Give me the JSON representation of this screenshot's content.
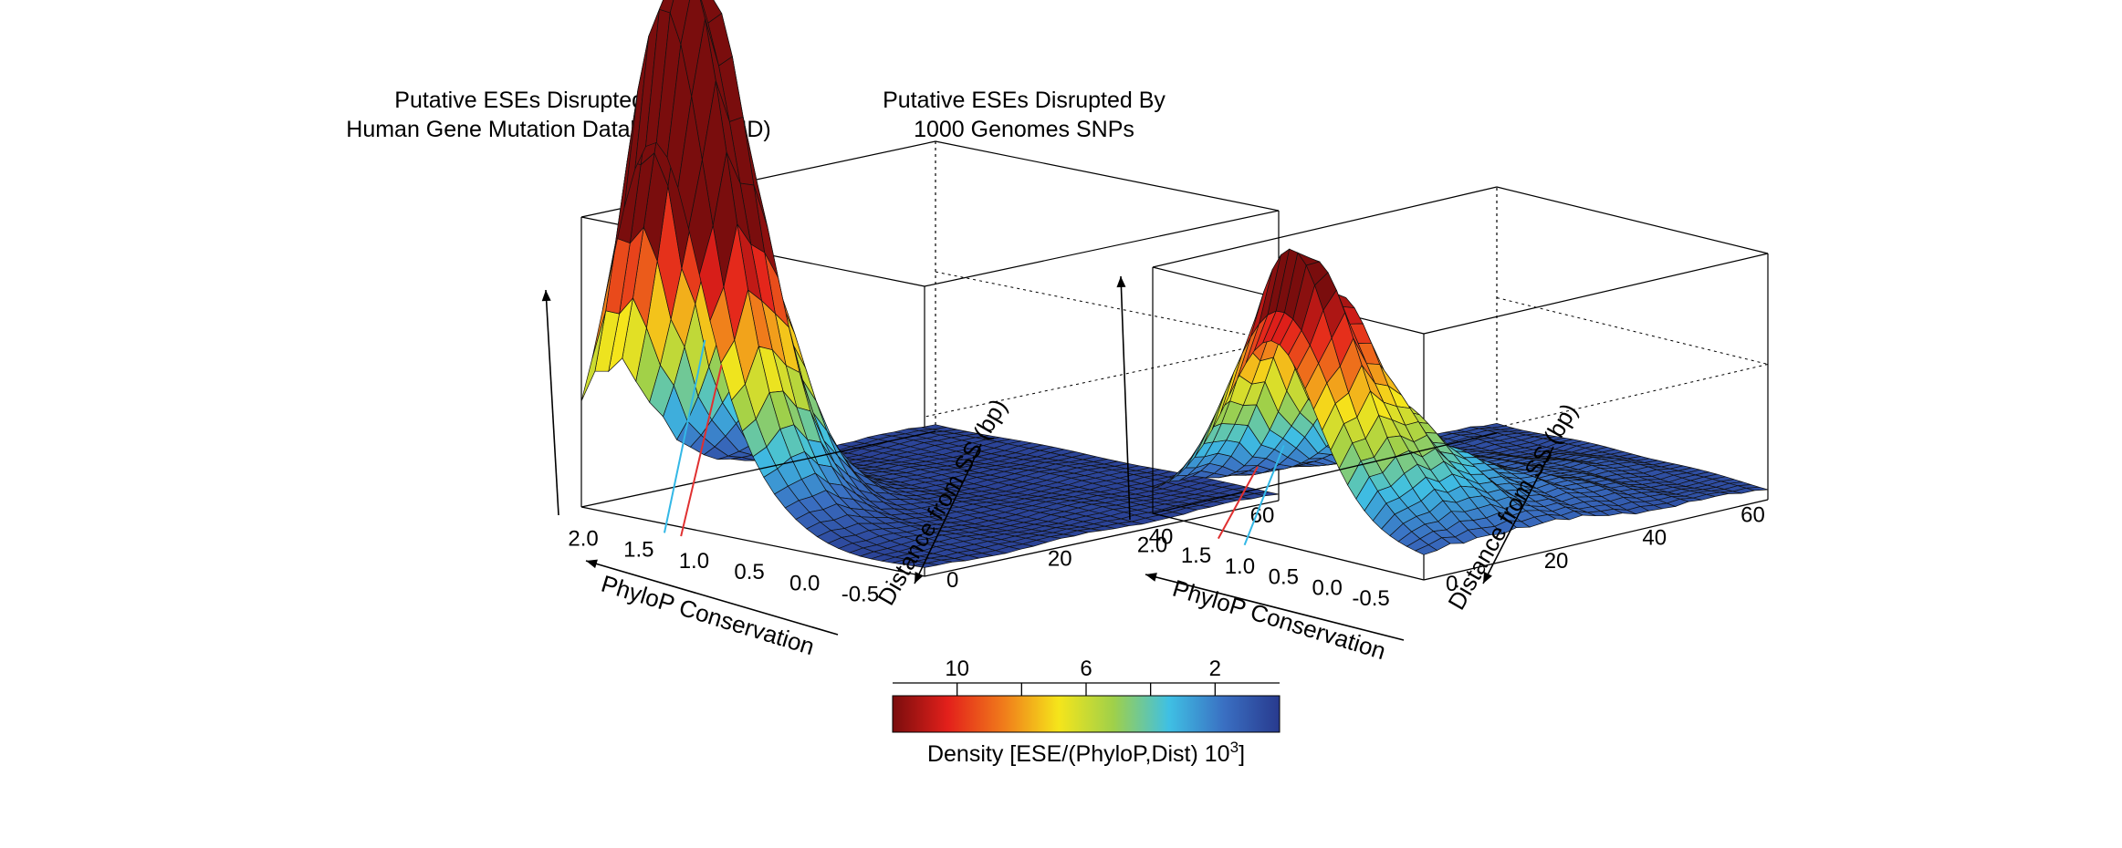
{
  "chart_data": [
    {
      "type": "surface",
      "title_lines": [
        "Putative ESEs Disrupted By The",
        "Human Gene Mutation Database (HGMD)"
      ],
      "xlabel": "PhyloP Conservation",
      "ylabel": "Distance from SS (bp)",
      "x_ticks": [
        "2.0",
        "1.5",
        "1.0",
        "0.5",
        "0.0",
        "-0.5"
      ],
      "y_ticks": [
        "0",
        "20",
        "40",
        "60"
      ],
      "xlim": [
        -1.0,
        2.1
      ],
      "ylim": [
        0,
        70
      ],
      "zlim": [
        0,
        12
      ],
      "markers": [
        {
          "x": 1.35,
          "color": "#33b8e6"
        },
        {
          "x": 1.2,
          "color": "#e03030"
        }
      ],
      "peaks": [
        {
          "x": 1.55,
          "y": 5,
          "height": 11.0,
          "sx": 0.35,
          "sy": 7
        },
        {
          "x": 1.35,
          "y": 10,
          "height": 10.0,
          "sx": 0.4,
          "sy": 10
        },
        {
          "x": 1.05,
          "y": 6,
          "height": 4.0,
          "sx": 0.55,
          "sy": 8
        }
      ],
      "base_density": 0.3
    },
    {
      "type": "surface",
      "title_lines": [
        "Putative ESEs Disrupted By",
        "1000 Genomes SNPs"
      ],
      "xlabel": "PhyloP Conservation",
      "ylabel": "Distance from SS (bp)",
      "x_ticks": [
        "2.0",
        "1.5",
        "1.0",
        "0.5",
        "0.0",
        "-0.5"
      ],
      "y_ticks": [
        "0",
        "20",
        "40",
        "60"
      ],
      "xlim": [
        -1.0,
        2.1
      ],
      "ylim": [
        0,
        70
      ],
      "zlim": [
        0,
        12
      ],
      "markers": [
        {
          "x": 1.35,
          "color": "#e03030"
        },
        {
          "x": 1.05,
          "color": "#33b8e6"
        }
      ],
      "peaks": [
        {
          "x": 1.05,
          "y": 5,
          "height": 4.0,
          "sx": 0.5,
          "sy": 6
        },
        {
          "x": 0.75,
          "y": 8,
          "height": 5.5,
          "sx": 0.45,
          "sy": 8
        },
        {
          "x": 0.45,
          "y": 10,
          "height": 4.0,
          "sx": 0.7,
          "sy": 12
        },
        {
          "x": 0.2,
          "y": 25,
          "height": 1.6,
          "sx": 0.9,
          "sy": 20
        }
      ],
      "base_density": 0.5
    }
  ],
  "colorbar": {
    "ticks": [
      {
        "value": 10,
        "label": "10"
      },
      {
        "value": 6,
        "label": "6"
      },
      {
        "value": 2,
        "label": "2"
      }
    ],
    "minor_ticks": [
      8,
      4
    ],
    "range": [
      12,
      0
    ],
    "label": "Density [ESE/(PhyloP,Dist) 10",
    "label_sup": "3",
    "label_end": "]",
    "colors": [
      "#7a0d0d",
      "#e3201b",
      "#f07b1b",
      "#f5e51b",
      "#9fd04a",
      "#3fc0e4",
      "#3a6fc2",
      "#283a8e"
    ]
  }
}
